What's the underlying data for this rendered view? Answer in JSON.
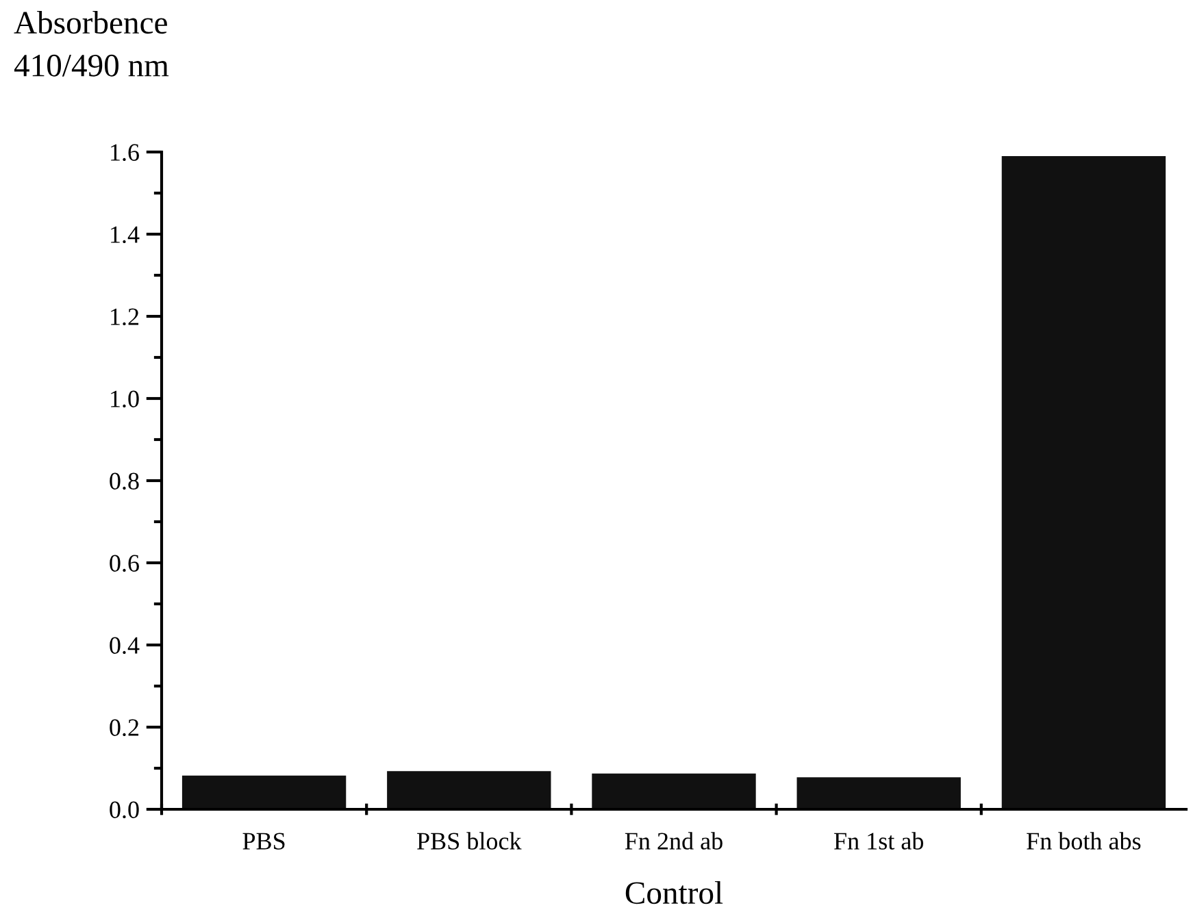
{
  "chart_data": {
    "type": "bar",
    "xlabel": "Control",
    "ylabel": "Absorbence\n410/490 nm",
    "categories": [
      "PBS",
      "PBS block",
      "Fn 2nd ab",
      "Fn 1st ab",
      "Fn both abs"
    ],
    "values": [
      0.082,
      0.093,
      0.087,
      0.078,
      1.59
    ],
    "color": "#111111",
    "ylim": [
      0,
      1.6
    ],
    "yticks": [
      {
        "value": 0,
        "label": "0.0"
      },
      0.2,
      0.4,
      0.6,
      0.8,
      {
        "value": 1,
        "label": "1.0"
      },
      1.2,
      1.4,
      1.6
    ],
    "grid": false
  }
}
